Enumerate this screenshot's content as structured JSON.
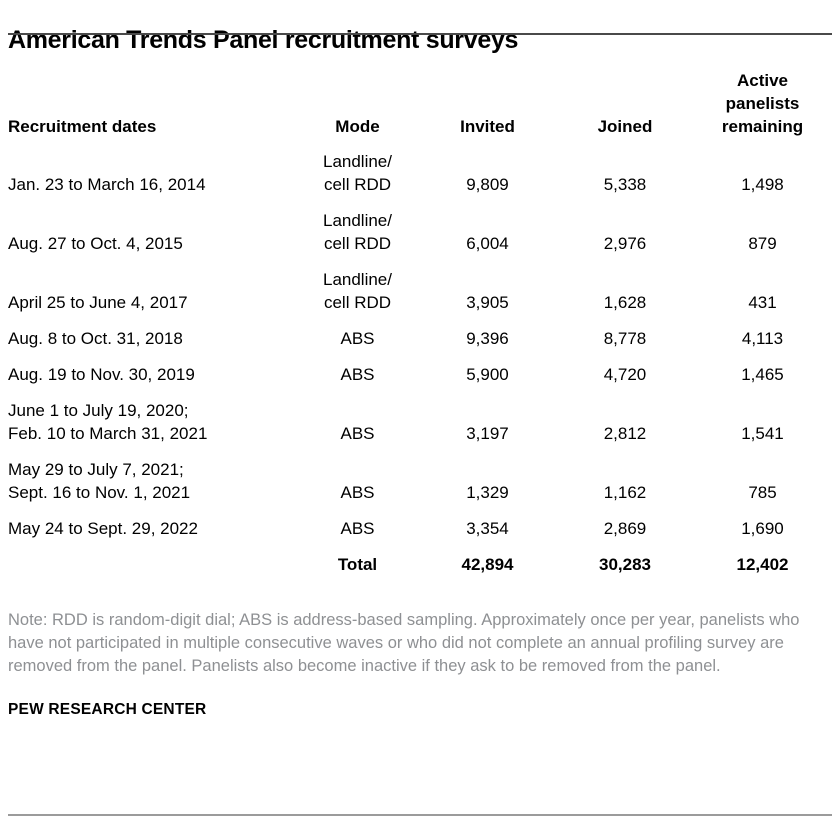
{
  "chart_data": {
    "type": "table",
    "title": "American Trends Panel recruitment surveys",
    "columns": [
      "Recruitment dates",
      "Mode",
      "Invited",
      "Joined",
      "Active\npanelists\nremaining"
    ],
    "rows": [
      {
        "dates": "Jan. 23 to March 16, 2014",
        "mode": "Landline/\ncell RDD",
        "invited": "9,809",
        "joined": "5,338",
        "active_remaining": "1,498"
      },
      {
        "dates": "Aug. 27 to Oct. 4, 2015",
        "mode": "Landline/\ncell RDD",
        "invited": "6,004",
        "joined": "2,976",
        "active_remaining": "879"
      },
      {
        "dates": "April 25 to June 4, 2017",
        "mode": "Landline/\ncell RDD",
        "invited": "3,905",
        "joined": "1,628",
        "active_remaining": "431"
      },
      {
        "dates": "Aug. 8 to Oct. 31, 2018",
        "mode": "ABS",
        "invited": "9,396",
        "joined": "8,778",
        "active_remaining": "4,113"
      },
      {
        "dates": "Aug. 19 to Nov. 30, 2019",
        "mode": "ABS",
        "invited": "5,900",
        "joined": "4,720",
        "active_remaining": "1,465"
      },
      {
        "dates": "June 1 to July 19, 2020;\nFeb. 10 to March 31, 2021",
        "mode": "ABS",
        "invited": "3,197",
        "joined": "2,812",
        "active_remaining": "1,541"
      },
      {
        "dates": "May 29 to July 7, 2021;\nSept. 16 to Nov. 1, 2021",
        "mode": "ABS",
        "invited": "1,329",
        "joined": "1,162",
        "active_remaining": "785"
      },
      {
        "dates": "May 24 to Sept. 29, 2022",
        "mode": "ABS",
        "invited": "3,354",
        "joined": "2,869",
        "active_remaining": "1,690"
      }
    ],
    "total_row": {
      "label": "Total",
      "invited": "42,894",
      "joined": "30,283",
      "active_remaining": "12,402"
    },
    "layout": {
      "grid": "off",
      "row_borders": "none",
      "number_alignment": "center"
    }
  },
  "footer": {
    "note": "Note: RDD is random-digit dial; ABS is address-based sampling. Approximately once per year, panelists who have not participated in multiple consecutive waves or who did not complete an annual profiling survey are removed from the panel. Panelists also become inactive if they ask to be removed from the panel.",
    "source": "PEW RESEARCH CENTER"
  },
  "colors": {
    "top_rule": "#4a4a4a",
    "bottom_rule": "#9b9b9b",
    "note_text": "#8e9093",
    "body_text": "#000000"
  }
}
